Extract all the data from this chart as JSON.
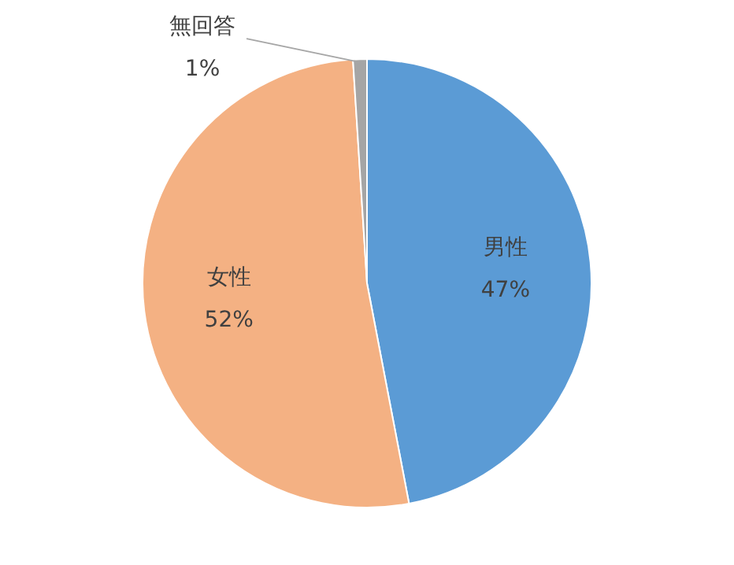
{
  "chart_data": {
    "type": "pie",
    "categories": [
      "男性",
      "女性",
      "無回答"
    ],
    "values": [
      47,
      52,
      1
    ],
    "colors": [
      "#5b9bd5",
      "#f4b183",
      "#a5a5a5"
    ],
    "value_labels": [
      "47%",
      "52%",
      "1%"
    ],
    "legend": false
  }
}
